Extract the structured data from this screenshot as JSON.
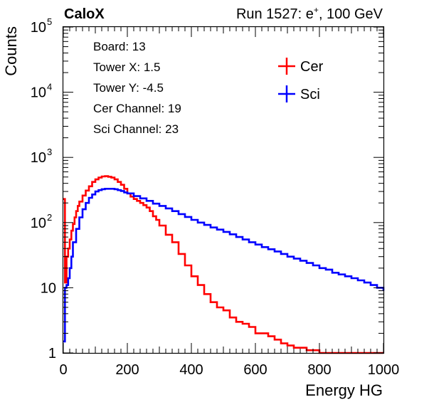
{
  "header": {
    "experiment": "CaloX",
    "run_prefix": "Run 1527: e",
    "run_particle_sup": "+",
    "run_suffix": ", 100 GeV"
  },
  "info_box": {
    "lines": [
      "Board: 13",
      "Tower X: 1.5",
      "Tower Y: -4.5",
      "Cer Channel: 19",
      "Sci Channel: 23"
    ]
  },
  "colors": {
    "cer": "#ff0000",
    "sci": "#0000ff"
  },
  "chart_data": {
    "type": "line",
    "style": "histogram-step",
    "xlabel": "Energy HG",
    "ylabel": "Counts",
    "xlim": [
      0,
      1000
    ],
    "ylim": [
      1,
      100000
    ],
    "yscale": "log",
    "grid": false,
    "legend_position": "top-right",
    "xticks": [
      "0",
      "200",
      "400",
      "600",
      "800",
      "1000"
    ],
    "yticks": [
      {
        "base": "1",
        "exp": ""
      },
      {
        "base": "10",
        "exp": ""
      },
      {
        "base": "10",
        "exp": "2"
      },
      {
        "base": "10",
        "exp": "3"
      },
      {
        "base": "10",
        "exp": "4"
      },
      {
        "base": "10",
        "exp": "5"
      }
    ],
    "series": [
      {
        "name": "Cer",
        "color": "#ff0000",
        "x": [
          0,
          5,
          10,
          15,
          20,
          25,
          30,
          35,
          40,
          45,
          50,
          60,
          70,
          80,
          90,
          100,
          110,
          120,
          130,
          140,
          150,
          160,
          170,
          180,
          190,
          200,
          210,
          220,
          230,
          240,
          250,
          260,
          270,
          280,
          290,
          300,
          320,
          340,
          360,
          380,
          400,
          420,
          440,
          460,
          480,
          500,
          520,
          540,
          560,
          580,
          600,
          620,
          640,
          660,
          680,
          700,
          720,
          740,
          760,
          780,
          800,
          820,
          840,
          860,
          880,
          900,
          920,
          940,
          960,
          980,
          1000
        ],
        "values": [
          230,
          12,
          30,
          40,
          55,
          75,
          95,
          120,
          150,
          180,
          210,
          260,
          310,
          360,
          420,
          460,
          490,
          510,
          515,
          505,
          490,
          460,
          420,
          380,
          330,
          280,
          250,
          230,
          215,
          200,
          185,
          170,
          150,
          125,
          110,
          90,
          65,
          50,
          33,
          22,
          15,
          11,
          8,
          6,
          5,
          4.5,
          3.5,
          3,
          2.8,
          2.5,
          2,
          2,
          1.8,
          1.6,
          1.4,
          1.3,
          1.2,
          1.2,
          1.1,
          1.1,
          1,
          1,
          1,
          1,
          1,
          1,
          1,
          1,
          1,
          1,
          1
        ]
      },
      {
        "name": "Sci",
        "color": "#0000ff",
        "x": [
          0,
          5,
          10,
          15,
          20,
          25,
          30,
          40,
          50,
          60,
          70,
          80,
          90,
          100,
          110,
          120,
          130,
          140,
          150,
          160,
          170,
          180,
          190,
          200,
          220,
          240,
          260,
          280,
          300,
          320,
          340,
          360,
          380,
          400,
          420,
          440,
          460,
          480,
          500,
          520,
          540,
          560,
          580,
          600,
          620,
          640,
          660,
          680,
          700,
          720,
          740,
          760,
          780,
          800,
          820,
          840,
          860,
          880,
          900,
          920,
          940,
          960,
          980,
          1000
        ],
        "values": [
          1.5,
          10,
          11,
          14,
          20,
          30,
          50,
          80,
          120,
          160,
          200,
          240,
          270,
          300,
          315,
          325,
          330,
          330,
          330,
          325,
          315,
          305,
          290,
          280,
          255,
          235,
          215,
          195,
          180,
          165,
          150,
          135,
          122,
          110,
          100,
          92,
          84,
          78,
          72,
          66,
          60,
          55,
          50,
          46,
          42,
          39,
          36,
          33,
          30,
          28,
          26,
          24,
          22,
          20,
          19,
          17,
          16,
          15,
          14,
          13,
          12,
          11,
          10,
          9
        ]
      }
    ]
  }
}
